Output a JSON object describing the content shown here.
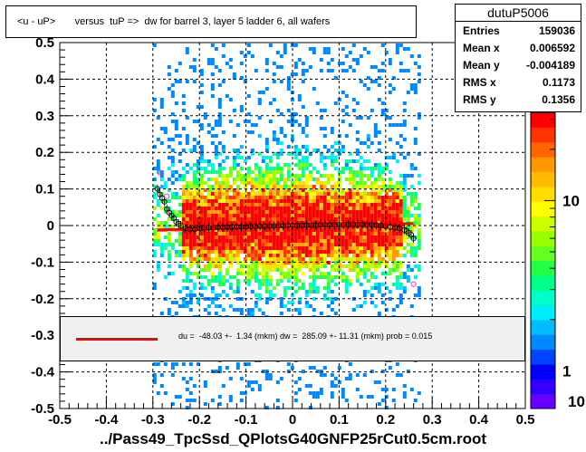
{
  "chart_data": {
    "type": "heatmap",
    "title": "<u - uP>       versus  tuP =>  dw for barrel 3, layer 5 ladder 6, all wafers",
    "xlabel": "../Pass49_TpcSsd_QPlotsG40GNFP25rCut0.5cm.root",
    "ylabel": "",
    "xlim": [
      -0.5,
      0.5
    ],
    "ylim": [
      -0.5,
      0.5
    ],
    "x_ticks": [
      "-0.5",
      "-0.4",
      "-0.3",
      "-0.2",
      "-0.1",
      "0",
      "0.1",
      "0.2",
      "0.3",
      "0.4",
      "0.5"
    ],
    "y_ticks": [
      "-0.5",
      "-0.4",
      "-0.3",
      "-0.2",
      "-0.1",
      "0",
      "0.1",
      "0.2",
      "0.3",
      "0.4",
      "0.5"
    ],
    "z_scale": "log",
    "z_ticks": [
      "1",
      "10"
    ],
    "z_tick_values": [
      1,
      10
    ],
    "grid": true,
    "profile_points": [
      [
        -0.29,
        0.1
      ],
      [
        -0.285,
        0.085
      ],
      [
        -0.28,
        0.075
      ],
      [
        -0.275,
        0.065
      ],
      [
        -0.27,
        0.045
      ],
      [
        -0.265,
        0.035
      ],
      [
        -0.26,
        0.028
      ],
      [
        -0.255,
        0.02
      ],
      [
        -0.25,
        0.01
      ],
      [
        -0.245,
        0.005
      ],
      [
        -0.24,
        0.0
      ],
      [
        -0.23,
        -0.008
      ],
      [
        -0.22,
        -0.01
      ],
      [
        -0.21,
        -0.01
      ],
      [
        -0.2,
        -0.008
      ],
      [
        -0.19,
        -0.007
      ],
      [
        -0.18,
        -0.006
      ],
      [
        -0.17,
        -0.006
      ],
      [
        -0.16,
        -0.005
      ],
      [
        -0.15,
        -0.005
      ],
      [
        -0.14,
        -0.004
      ],
      [
        -0.13,
        -0.004
      ],
      [
        -0.12,
        -0.003
      ],
      [
        -0.11,
        -0.003
      ],
      [
        -0.1,
        -0.003
      ],
      [
        -0.09,
        -0.002
      ],
      [
        -0.08,
        -0.002
      ],
      [
        -0.07,
        -0.002
      ],
      [
        -0.06,
        -0.002
      ],
      [
        -0.05,
        -0.001
      ],
      [
        -0.04,
        -0.001
      ],
      [
        -0.03,
        -0.001
      ],
      [
        -0.02,
        -0.001
      ],
      [
        -0.01,
        0.0
      ],
      [
        0.0,
        0.0
      ],
      [
        0.01,
        0.0
      ],
      [
        0.02,
        0.001
      ],
      [
        0.03,
        0.001
      ],
      [
        0.04,
        0.001
      ],
      [
        0.05,
        0.001
      ],
      [
        0.06,
        0.002
      ],
      [
        0.07,
        0.002
      ],
      [
        0.08,
        0.002
      ],
      [
        0.09,
        0.002
      ],
      [
        0.1,
        0.002
      ],
      [
        0.11,
        0.003
      ],
      [
        0.12,
        0.003
      ],
      [
        0.13,
        0.003
      ],
      [
        0.14,
        0.003
      ],
      [
        0.15,
        0.003
      ],
      [
        0.16,
        0.002
      ],
      [
        0.17,
        0.002
      ],
      [
        0.18,
        0.001
      ],
      [
        0.19,
        0.0
      ],
      [
        0.2,
        -0.002
      ],
      [
        0.21,
        -0.004
      ],
      [
        0.22,
        -0.006
      ],
      [
        0.23,
        -0.008
      ],
      [
        0.24,
        -0.012
      ],
      [
        0.245,
        -0.015
      ],
      [
        0.25,
        -0.02
      ],
      [
        0.255,
        -0.025
      ],
      [
        0.26,
        -0.035
      ]
    ],
    "outlier_points": [
      [
        -0.285,
        0.145
      ],
      [
        0.26,
        -0.16
      ],
      [
        -0.27,
        0.08
      ]
    ],
    "fit_line": {
      "x": [
        -0.29,
        0.26
      ],
      "y": [
        -0.012,
        0.006
      ],
      "color": "#ff0000"
    }
  },
  "stats": {
    "name": "dutuP5006",
    "rows": [
      {
        "key": "Entries",
        "value": "159036"
      },
      {
        "key": "Mean x",
        "value": "0.006592"
      },
      {
        "key": "Mean y",
        "value": "-0.004189"
      },
      {
        "key": "RMS x",
        "value": "0.1173"
      },
      {
        "key": "RMS y",
        "value": "0.1356"
      }
    ]
  },
  "fit_legend": {
    "text": "du =  -48.03 +-  1.34 (mkm) dw =  285.09 +- 11.31 (mkm) prob = 0.015",
    "color": "#ff0000"
  }
}
